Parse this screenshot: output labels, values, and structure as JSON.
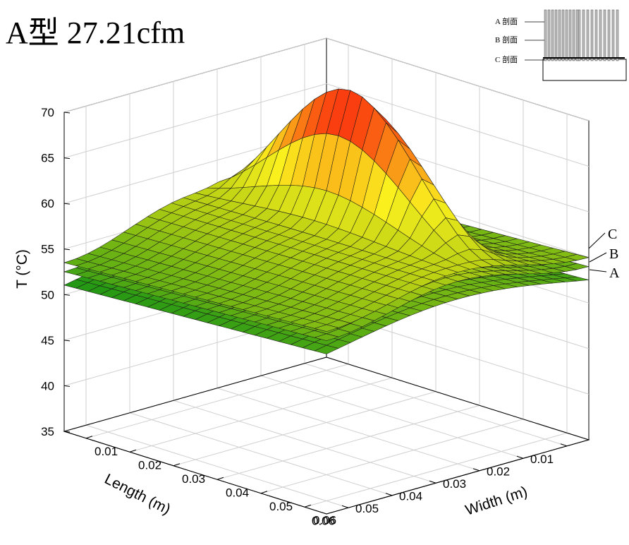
{
  "title": "A型 27.21cfm",
  "chart_data": {
    "type": "surface",
    "title": "A型 27.21cfm",
    "xlabel": "Length (m)",
    "ylabel": "Width (m)",
    "zlabel": "T (°C)",
    "length_ticks": [
      "0.01",
      "0.02",
      "0.03",
      "0.04",
      "0.05",
      "0.06"
    ],
    "width_ticks": [
      "0.01",
      "0.02",
      "0.03",
      "0.04",
      "0.05",
      "0.06"
    ],
    "z_ticks": [
      "35",
      "40",
      "45",
      "50",
      "55",
      "60",
      "65",
      "70"
    ],
    "zlim": [
      35,
      70
    ],
    "grid": true,
    "series": [
      {
        "name": "A",
        "min_T": 51.5,
        "max_T": 55.5
      },
      {
        "name": "B",
        "min_T": 52.5,
        "max_T": 57.5
      },
      {
        "name": "C",
        "min_T": 53.5,
        "max_T": 69
      }
    ]
  },
  "inset": {
    "labels": [
      "A 剖面",
      "B 剖面",
      "C 剖面"
    ]
  }
}
